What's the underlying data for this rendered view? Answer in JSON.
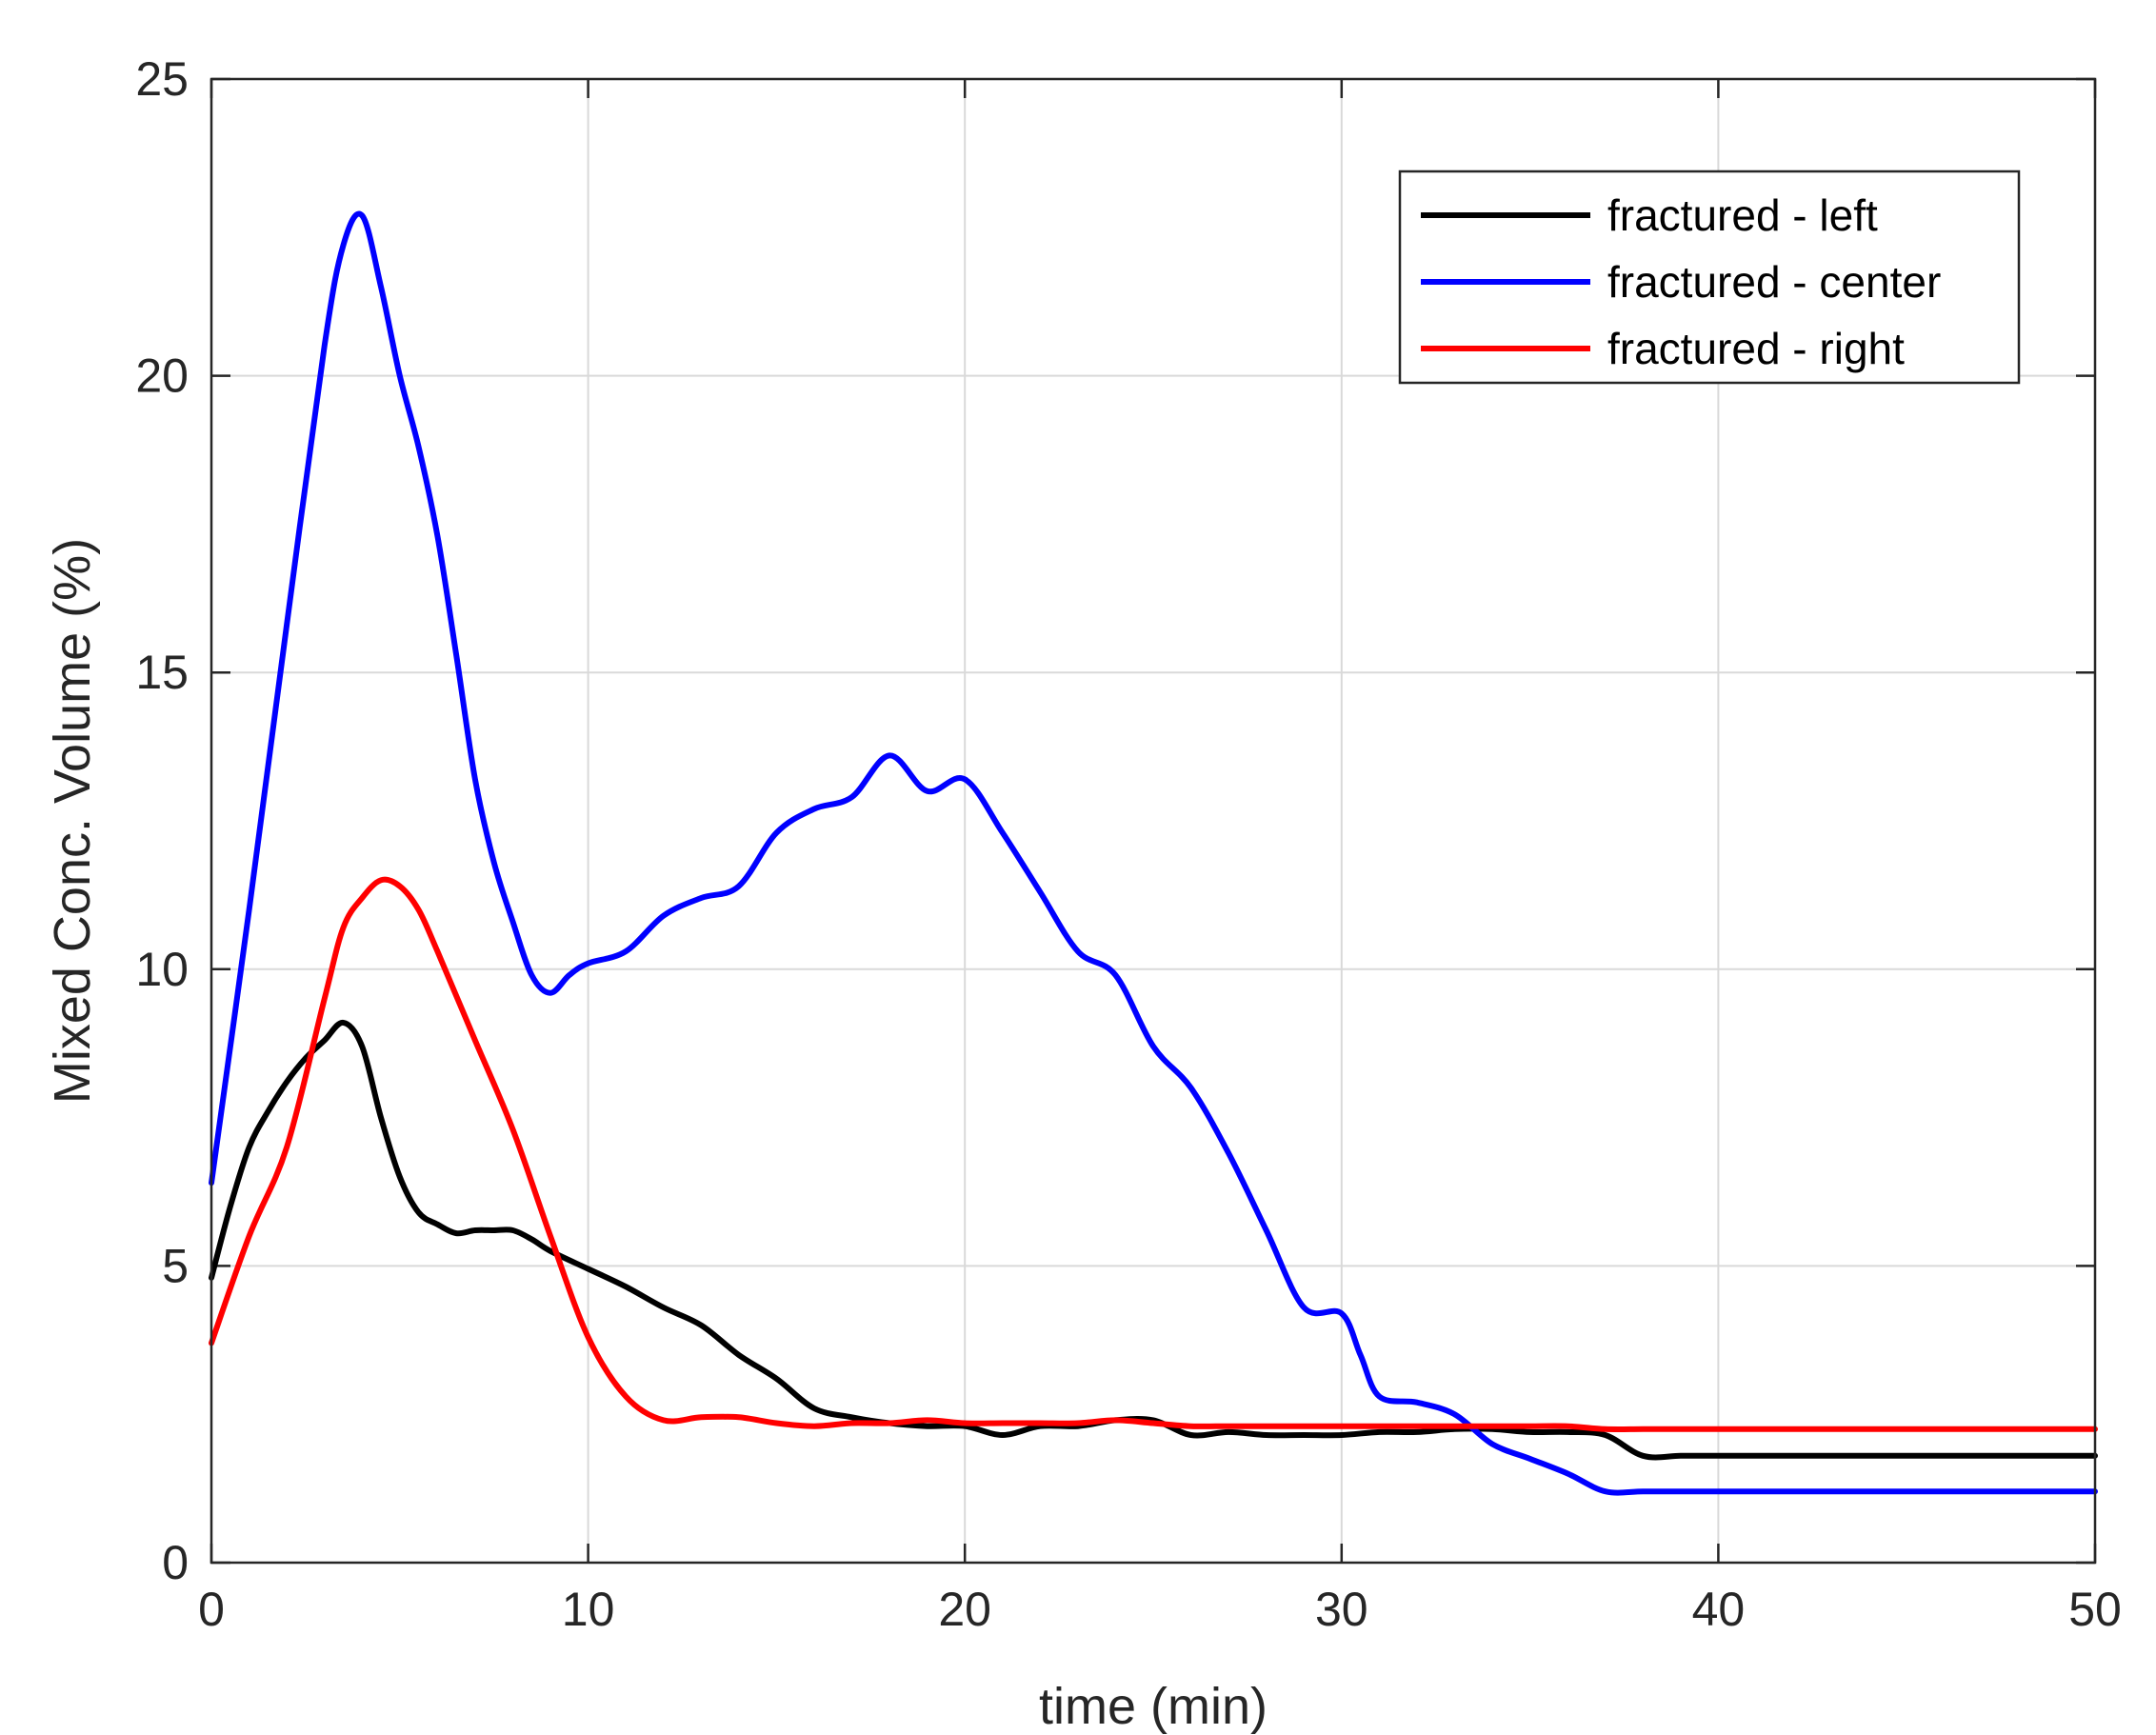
{
  "chart_data": {
    "type": "line",
    "title": "",
    "xlabel": "time (min)",
    "ylabel": "Mixed Conc. Volume (%)",
    "xlim": [
      0,
      50
    ],
    "ylim": [
      0,
      25
    ],
    "xticks": [
      "0",
      "10",
      "20",
      "30",
      "40",
      "50"
    ],
    "yticks": [
      "0",
      "5",
      "10",
      "15",
      "20",
      "25"
    ],
    "grid": true,
    "legend_position": "top-right",
    "series": [
      {
        "name": "fractured - left",
        "color": "#000000",
        "x": [
          0,
          0.5,
          1,
          1.5,
          2,
          2.5,
          3,
          3.5,
          4,
          4.5,
          5,
          5.5,
          6,
          6.5,
          7,
          7.5,
          8,
          8.5,
          9,
          10,
          11,
          12,
          13,
          14,
          15,
          16,
          17,
          18,
          19,
          20,
          21,
          22,
          23,
          24,
          25,
          26,
          27,
          28,
          29,
          30,
          31,
          32,
          33,
          34,
          35,
          36,
          37,
          38,
          39,
          40,
          41,
          42,
          43,
          44,
          45,
          46,
          47,
          48,
          49,
          50
        ],
        "y": [
          4.8,
          6.0,
          7.0,
          7.6,
          8.1,
          8.5,
          8.8,
          9.1,
          8.7,
          7.5,
          6.5,
          5.9,
          5.7,
          5.55,
          5.6,
          5.6,
          5.6,
          5.45,
          5.25,
          4.95,
          4.65,
          4.3,
          4.0,
          3.5,
          3.1,
          2.6,
          2.45,
          2.35,
          2.3,
          2.3,
          2.15,
          2.3,
          2.3,
          2.4,
          2.4,
          2.15,
          2.2,
          2.15,
          2.15,
          2.15,
          2.2,
          2.2,
          2.25,
          2.25,
          2.2,
          2.2,
          2.15,
          1.8,
          1.8,
          1.8,
          1.8,
          1.8,
          1.8,
          1.8,
          1.8,
          1.8,
          1.8,
          1.8,
          1.8,
          1.8
        ]
      },
      {
        "name": "fractured - center",
        "color": "#0000ff",
        "x": [
          0,
          1,
          2,
          3,
          3.5,
          4,
          4.5,
          5,
          5.5,
          6,
          6.5,
          7,
          7.5,
          8,
          8.5,
          9,
          9.5,
          10,
          11,
          12,
          13,
          14,
          15,
          16,
          17,
          18,
          19,
          20,
          21,
          22,
          23,
          24,
          25,
          26,
          27,
          28,
          29,
          30,
          30.5,
          31,
          32,
          33,
          34,
          35,
          36,
          37,
          38,
          39,
          40,
          41,
          42,
          43,
          44,
          45,
          46,
          47,
          48,
          49,
          50
        ],
        "y": [
          6.4,
          11.0,
          15.8,
          20.5,
          22.2,
          22.7,
          21.5,
          20.0,
          18.8,
          17.3,
          15.3,
          13.2,
          11.8,
          10.8,
          9.9,
          9.6,
          9.9,
          10.1,
          10.3,
          10.9,
          11.2,
          11.4,
          12.3,
          12.7,
          12.9,
          13.6,
          13.0,
          13.2,
          12.3,
          11.3,
          10.3,
          9.9,
          8.7,
          8.0,
          6.9,
          5.6,
          4.3,
          4.2,
          3.5,
          2.8,
          2.7,
          2.5,
          2.0,
          1.75,
          1.5,
          1.2,
          1.2,
          1.2,
          1.2,
          1.2,
          1.2,
          1.2,
          1.2,
          1.2,
          1.2,
          1.2,
          1.2,
          1.2,
          1.2
        ]
      },
      {
        "name": "fractured - right",
        "color": "#ff0000",
        "x": [
          0,
          1,
          2,
          3,
          3.5,
          4,
          4.5,
          5,
          5.5,
          6,
          7,
          8,
          9,
          10,
          11,
          12,
          13,
          14,
          15,
          16,
          17,
          18,
          19,
          20,
          21,
          22,
          23,
          24,
          25,
          26,
          27,
          28,
          29,
          30,
          31,
          32,
          33,
          34,
          35,
          36,
          37,
          38,
          39,
          40,
          41,
          42,
          43,
          44,
          45,
          46,
          47,
          48,
          49,
          50
        ],
        "y": [
          3.7,
          5.5,
          7.0,
          9.5,
          10.7,
          11.2,
          11.5,
          11.4,
          11.0,
          10.3,
          8.8,
          7.3,
          5.5,
          3.8,
          2.8,
          2.4,
          2.45,
          2.45,
          2.35,
          2.3,
          2.35,
          2.35,
          2.4,
          2.35,
          2.35,
          2.35,
          2.35,
          2.4,
          2.35,
          2.3,
          2.3,
          2.3,
          2.3,
          2.3,
          2.3,
          2.3,
          2.3,
          2.3,
          2.3,
          2.3,
          2.25,
          2.25,
          2.25,
          2.25,
          2.25,
          2.25,
          2.25,
          2.25,
          2.25,
          2.25,
          2.25,
          2.25,
          2.25,
          2.25
        ]
      }
    ]
  }
}
